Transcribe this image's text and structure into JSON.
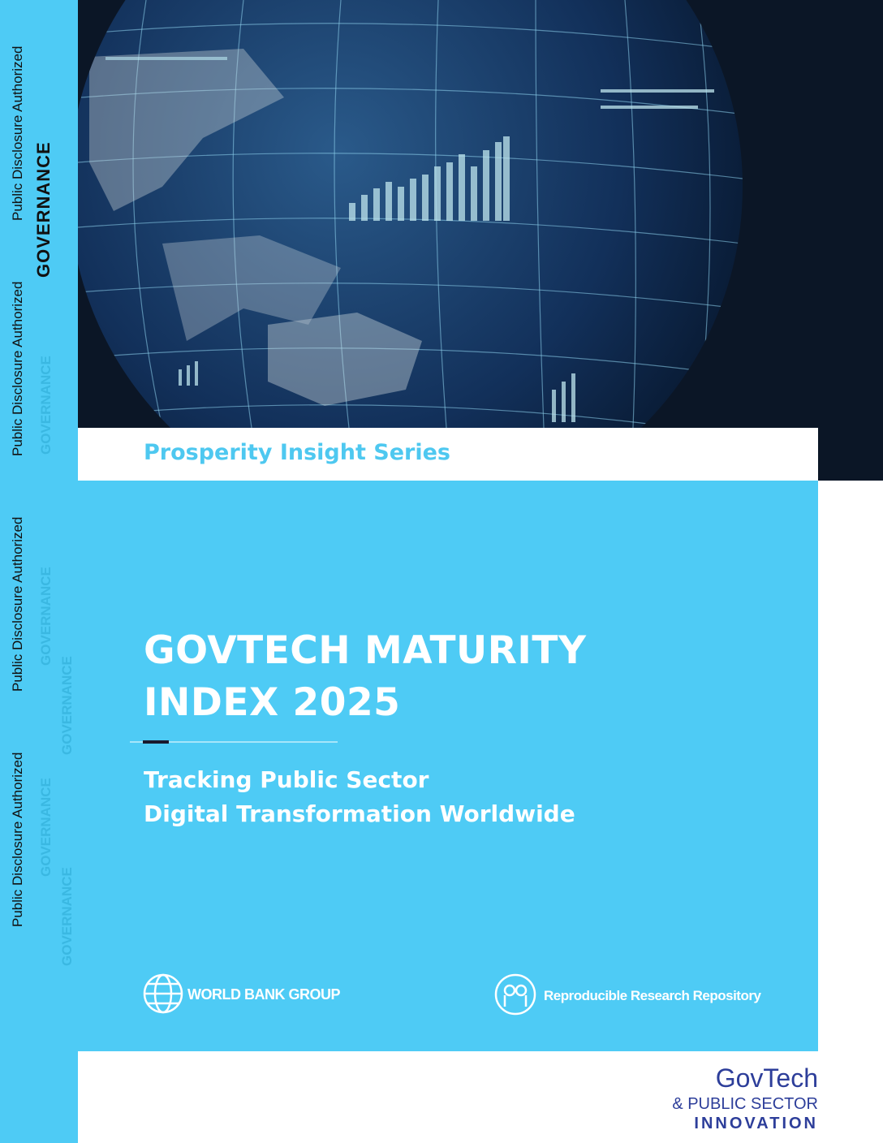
{
  "side": {
    "disclosure": [
      "Public Disclosure Authorized",
      "Public Disclosure Authorized",
      "Public Disclosure Authorized",
      "Public Disclosure Authorized"
    ],
    "topic": "GOVERNANCE"
  },
  "header": {
    "series": "Prosperity Insight Series"
  },
  "title": {
    "lines": [
      "GOVTECH MATURITY",
      "INDEX 2025"
    ]
  },
  "subtitle": {
    "lines": [
      "Tracking Public Sector",
      "Digital Transformation Worldwide"
    ]
  },
  "logos": {
    "world_bank": "WORLD BANK GROUP",
    "repository": "Reproducible Research Repository",
    "govtech": "GovTech",
    "public_sector": "& PUBLIC SECTOR",
    "innovation": "INNOVATION"
  }
}
